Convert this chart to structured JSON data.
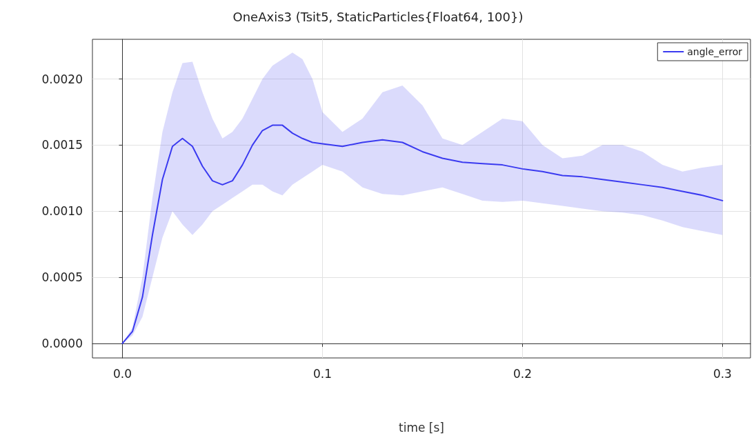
{
  "chart_data": {
    "type": "line",
    "title": "OneAxis3 (Tsit5, StaticParticles{Float64, 100})",
    "xlabel": "time [s]",
    "x": [
      0,
      0.005,
      0.01,
      0.015,
      0.02,
      0.025,
      0.03,
      0.035,
      0.04,
      0.045,
      0.05,
      0.055,
      0.06,
      0.065,
      0.07,
      0.075,
      0.08,
      0.085,
      0.09,
      0.095,
      0.1,
      0.11,
      0.12,
      0.13,
      0.14,
      0.15,
      0.16,
      0.17,
      0.18,
      0.19,
      0.2,
      0.21,
      0.22,
      0.23,
      0.24,
      0.25,
      0.26,
      0.27,
      0.28,
      0.29,
      0.3
    ],
    "series": [
      {
        "name": "angle_error",
        "color": "#3a3af0",
        "values": [
          0,
          9e-05,
          0.00035,
          0.00082,
          0.00124,
          0.00149,
          0.00155,
          0.00149,
          0.00134,
          0.00123,
          0.0012,
          0.00123,
          0.00135,
          0.0015,
          0.00161,
          0.00165,
          0.00165,
          0.00159,
          0.00155,
          0.00152,
          0.00151,
          0.00149,
          0.00152,
          0.00154,
          0.00152,
          0.00145,
          0.0014,
          0.00137,
          0.00136,
          0.00135,
          0.00132,
          0.0013,
          0.00127,
          0.00126,
          0.00124,
          0.00122,
          0.0012,
          0.00118,
          0.00115,
          0.00112,
          0.00108
        ],
        "upper": [
          0,
          0.00012,
          0.0005,
          0.0011,
          0.0016,
          0.0019,
          0.00212,
          0.00213,
          0.0019,
          0.0017,
          0.00155,
          0.0016,
          0.0017,
          0.00185,
          0.002,
          0.0021,
          0.00215,
          0.0022,
          0.00215,
          0.002,
          0.00175,
          0.0016,
          0.0017,
          0.0019,
          0.00195,
          0.0018,
          0.00155,
          0.0015,
          0.0016,
          0.0017,
          0.00168,
          0.0015,
          0.0014,
          0.00142,
          0.0015,
          0.0015,
          0.00145,
          0.00135,
          0.0013,
          0.00133,
          0.00135
        ],
        "lower": [
          0,
          6e-05,
          0.0002,
          0.0005,
          0.0008,
          0.001,
          0.0009,
          0.00082,
          0.0009,
          0.001,
          0.00105,
          0.0011,
          0.00115,
          0.0012,
          0.0012,
          0.00115,
          0.00112,
          0.0012,
          0.00125,
          0.0013,
          0.00135,
          0.0013,
          0.00118,
          0.00113,
          0.00112,
          0.00115,
          0.00118,
          0.00113,
          0.00108,
          0.00107,
          0.00108,
          0.00106,
          0.00104,
          0.00102,
          0.001,
          0.00099,
          0.00097,
          0.00093,
          0.00088,
          0.00085,
          0.00082
        ]
      }
    ],
    "xlim": [
      -0.015,
      0.314
    ],
    "ylim": [
      -0.00011,
      0.0023
    ],
    "xticks": [
      {
        "value": 0,
        "label": "0.0"
      },
      {
        "value": 0.1,
        "label": "0.1"
      },
      {
        "value": 0.2,
        "label": "0.2"
      },
      {
        "value": 0.3,
        "label": "0.3"
      }
    ],
    "yticks": [
      {
        "value": 0,
        "label": "0.0000"
      },
      {
        "value": 0.0005,
        "label": "0.0005"
      },
      {
        "value": 0.001,
        "label": "0.0010"
      },
      {
        "value": 0.0015,
        "label": "0.0015"
      },
      {
        "value": 0.002,
        "label": "0.0020"
      }
    ],
    "grid": true,
    "legend": "top right",
    "marker": "none",
    "line_style": "solid"
  }
}
